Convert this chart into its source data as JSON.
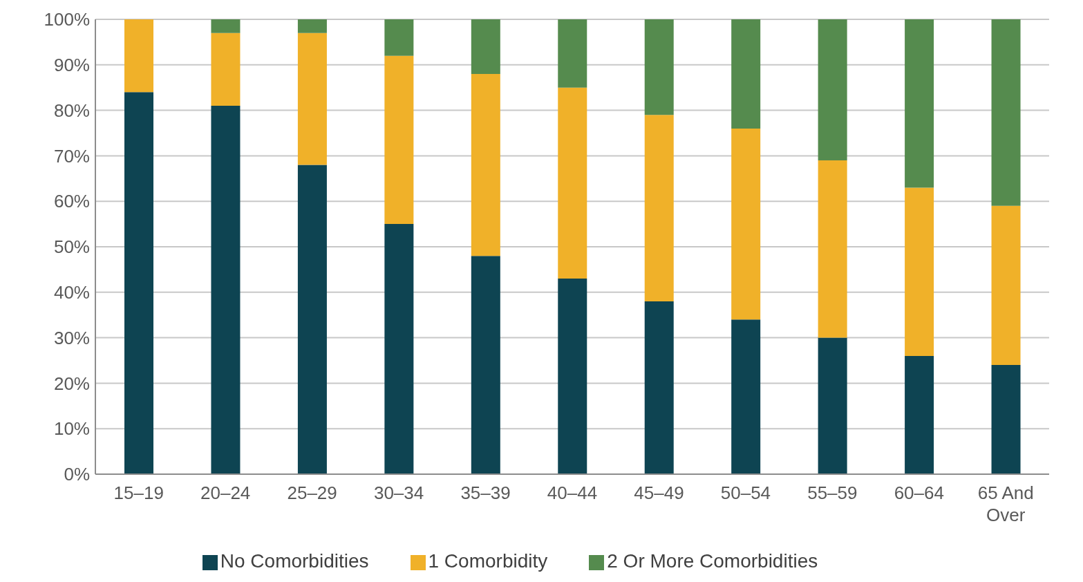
{
  "chart_data": {
    "type": "bar",
    "stacked": true,
    "categories": [
      "15–19",
      "20–24",
      "25–29",
      "30–34",
      "35–39",
      "40–44",
      "45–49",
      "50–54",
      "55–59",
      "60–64",
      "65 And Over"
    ],
    "series": [
      {
        "name": "No Comorbidities",
        "color": "#0e4452",
        "values": [
          84,
          81,
          68,
          55,
          48,
          43,
          38,
          34,
          30,
          26,
          24
        ]
      },
      {
        "name": "1 Comorbidity",
        "color": "#f0b129",
        "values": [
          16,
          16,
          29,
          37,
          40,
          42,
          41,
          42,
          39,
          37,
          35
        ]
      },
      {
        "name": "2 Or More Comorbidities",
        "color": "#558b4e",
        "values": [
          0,
          3,
          3,
          8,
          12,
          15,
          21,
          24,
          31,
          37,
          41
        ]
      }
    ],
    "ylim": [
      0,
      100
    ],
    "yticks": [
      {
        "value": 0,
        "label": "0%"
      },
      {
        "value": 10,
        "label": "10%"
      },
      {
        "value": 20,
        "label": "20%"
      },
      {
        "value": 30,
        "label": "30%"
      },
      {
        "value": 40,
        "label": "40%"
      },
      {
        "value": 50,
        "label": "50%"
      },
      {
        "value": 60,
        "label": "60%"
      },
      {
        "value": 70,
        "label": "70%"
      },
      {
        "value": 80,
        "label": "80%"
      },
      {
        "value": 90,
        "label": "90%"
      },
      {
        "value": 100,
        "label": "100%"
      }
    ],
    "grid": "y",
    "legend": "bottom"
  }
}
